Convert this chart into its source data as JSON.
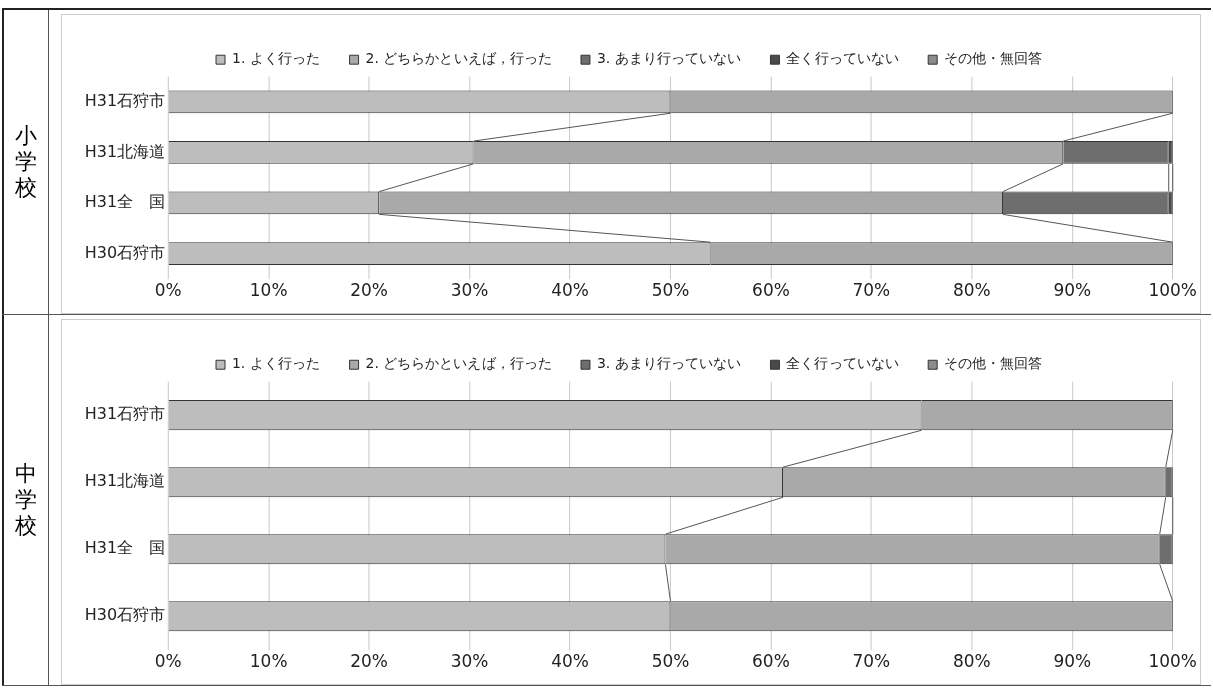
{
  "chart_data": [
    {
      "type": "bar",
      "title": "小学校",
      "orientation": "horizontal",
      "stacked": true,
      "categories": [
        "H31石狩市",
        "H31北海道",
        "H31全　国",
        "H30石狩市"
      ],
      "series": [
        {
          "name": "1. よく行った",
          "color": "#bdbdbd",
          "values": [
            50,
            30.4,
            21,
            54
          ]
        },
        {
          "name": "2. どちらかといえば，行った",
          "color": "#a9a9a9",
          "values": [
            50,
            58.7,
            62.1,
            46
          ]
        },
        {
          "name": "3. あまり行っていない",
          "color": "#6e6e6e",
          "values": [
            0,
            10.5,
            16.5,
            0
          ]
        },
        {
          "name": "全く行っていない",
          "color": "#4a4a4a",
          "values": [
            0,
            0.4,
            0.4,
            0
          ]
        },
        {
          "name": "その他・無回答",
          "color": "#8c8c8c",
          "values": [
            0,
            0,
            0,
            0
          ]
        }
      ],
      "xlim": [
        0,
        100
      ],
      "xticks": [
        {
          "value": 0,
          "label": "0%"
        },
        {
          "value": 10,
          "label": "10%"
        },
        {
          "value": 20,
          "label": "20%"
        },
        {
          "value": 30,
          "label": "30%"
        },
        {
          "value": 40,
          "label": "40%"
        },
        {
          "value": 50,
          "label": "50%"
        },
        {
          "value": 60,
          "label": "60%"
        },
        {
          "value": 70,
          "label": "70%"
        },
        {
          "value": 80,
          "label": "80%"
        },
        {
          "value": 90,
          "label": "90%"
        },
        {
          "value": 100,
          "label": "100%"
        }
      ],
      "grid": "x",
      "legend": "top"
    },
    {
      "type": "bar",
      "title": "中学校",
      "orientation": "horizontal",
      "stacked": true,
      "categories": [
        "H31石狩市",
        "H31北海道",
        "H31全　国",
        "H30石狩市"
      ],
      "series": [
        {
          "name": "1. よく行った",
          "color": "#bdbdbd",
          "values": [
            75,
            61.2,
            49.5,
            50
          ]
        },
        {
          "name": "2. どちらかといえば，行った",
          "color": "#a9a9a9",
          "values": [
            25,
            38.1,
            49.2,
            50
          ]
        },
        {
          "name": "3. あまり行っていない",
          "color": "#6e6e6e",
          "values": [
            0,
            0.7,
            1.3,
            0
          ]
        },
        {
          "name": "全く行っていない",
          "color": "#4a4a4a",
          "values": [
            0,
            0,
            0,
            0
          ]
        },
        {
          "name": "その他・無回答",
          "color": "#8c8c8c",
          "values": [
            0,
            0,
            0,
            0
          ]
        }
      ],
      "xlim": [
        0,
        100
      ],
      "xticks": [
        {
          "value": 0,
          "label": "0%"
        },
        {
          "value": 10,
          "label": "10%"
        },
        {
          "value": 20,
          "label": "20%"
        },
        {
          "value": 30,
          "label": "30%"
        },
        {
          "value": 40,
          "label": "40%"
        },
        {
          "value": 50,
          "label": "50%"
        },
        {
          "value": 60,
          "label": "60%"
        },
        {
          "value": 70,
          "label": "70%"
        },
        {
          "value": 80,
          "label": "80%"
        },
        {
          "value": 90,
          "label": "90%"
        },
        {
          "value": 100,
          "label": "100%"
        }
      ],
      "grid": "x",
      "legend": "top"
    }
  ]
}
